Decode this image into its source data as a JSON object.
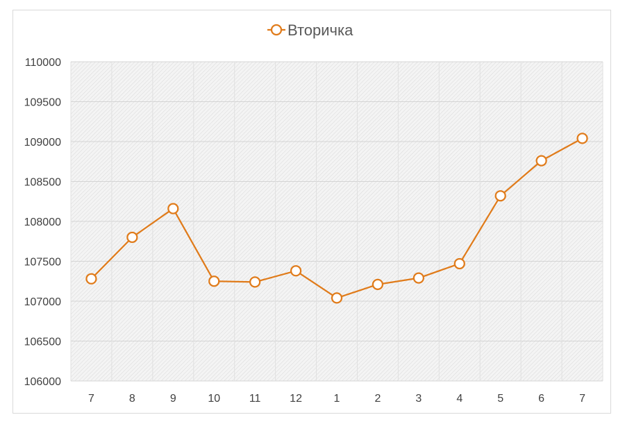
{
  "chart_data": {
    "type": "line",
    "categories": [
      "7",
      "8",
      "9",
      "10",
      "11",
      "12",
      "1",
      "2",
      "3",
      "4",
      "5",
      "6",
      "7"
    ],
    "series": [
      {
        "name": "Вторичка",
        "color": "#E07B1A",
        "values": [
          107280,
          107800,
          108160,
          107250,
          107240,
          107380,
          107040,
          107210,
          107290,
          107470,
          108320,
          108760,
          109040
        ]
      }
    ],
    "ylim": [
      106000,
      110000
    ],
    "ytick_labels": [
      "106000",
      "106500",
      "107000",
      "107500",
      "108000",
      "108500",
      "109000",
      "109500",
      "110000"
    ],
    "legend": "top",
    "grid": true,
    "plot_background": "hatched light gray"
  }
}
